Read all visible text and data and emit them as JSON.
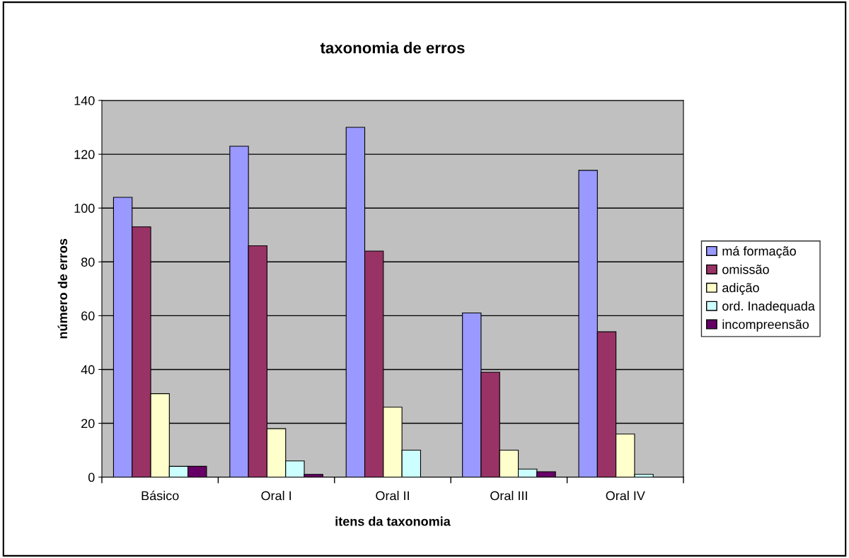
{
  "chart_data": {
    "type": "bar",
    "title": "taxonomia de erros",
    "xlabel": "itens da taxonomia",
    "ylabel": "número de erros",
    "categories": [
      "Básico",
      "Oral I",
      "Oral II",
      "Oral III",
      "Oral IV"
    ],
    "series": [
      {
        "name": "má formação",
        "color": "#9999ff",
        "values": [
          104,
          123,
          130,
          61,
          114
        ]
      },
      {
        "name": "omissão",
        "color": "#993366",
        "values": [
          93,
          86,
          84,
          39,
          54
        ]
      },
      {
        "name": "adição",
        "color": "#ffffcc",
        "values": [
          31,
          18,
          26,
          10,
          16
        ]
      },
      {
        "name": "ord. Inadequada",
        "color": "#ccffff",
        "values": [
          4,
          6,
          10,
          3,
          1
        ]
      },
      {
        "name": "incompreensão",
        "color": "#660066",
        "values": [
          4,
          1,
          0,
          2,
          0
        ]
      }
    ],
    "ylim": [
      0,
      140
    ],
    "yticks": [
      0,
      20,
      40,
      60,
      80,
      100,
      120,
      140
    ],
    "grid": "y",
    "legend": "right"
  }
}
